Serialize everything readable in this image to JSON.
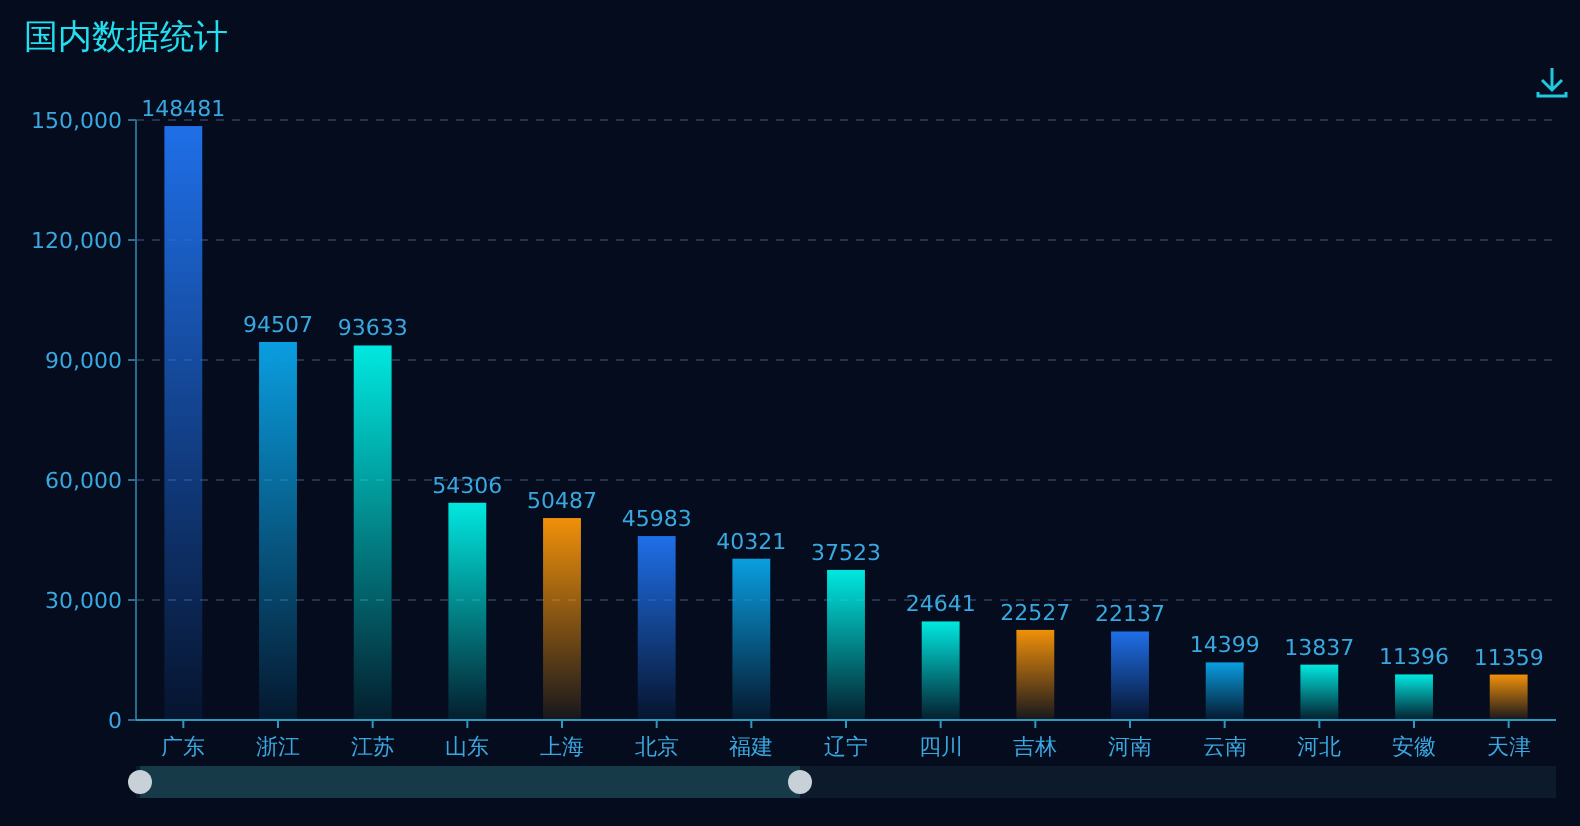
{
  "chart_data": {
    "type": "bar",
    "title": "国内数据统计",
    "categories": [
      "广东",
      "浙江",
      "江苏",
      "山东",
      "上海",
      "北京",
      "福建",
      "辽宁",
      "四川",
      "吉林",
      "河南",
      "云南",
      "河北",
      "安徽",
      "天津"
    ],
    "values": [
      148481,
      94507,
      93633,
      54306,
      50487,
      45983,
      40321,
      37523,
      24641,
      22527,
      22137,
      14399,
      13837,
      11396,
      11359
    ],
    "colors": [
      "#1f6fe8",
      "#0a9ee0",
      "#00e8e0",
      "#00e8e0",
      "#f0900a",
      "#1f6fe8",
      "#0a9ee0",
      "#00e8e0",
      "#00e8e0",
      "#f0900a",
      "#1f6fe8",
      "#0a9ee0",
      "#00e8e0",
      "#00e8e0",
      "#f0900a"
    ],
    "ylim": [
      0,
      150000
    ],
    "yticks": [
      0,
      {
        "value": 30000,
        "label": "30,000"
      },
      {
        "value": 60000,
        "label": "60,000"
      },
      {
        "value": 90000,
        "label": "90,000"
      },
      {
        "value": 120000,
        "label": "120,000"
      },
      {
        "value": 150000,
        "label": "150,000"
      }
    ],
    "grid": "y",
    "data_labels": true
  }
}
